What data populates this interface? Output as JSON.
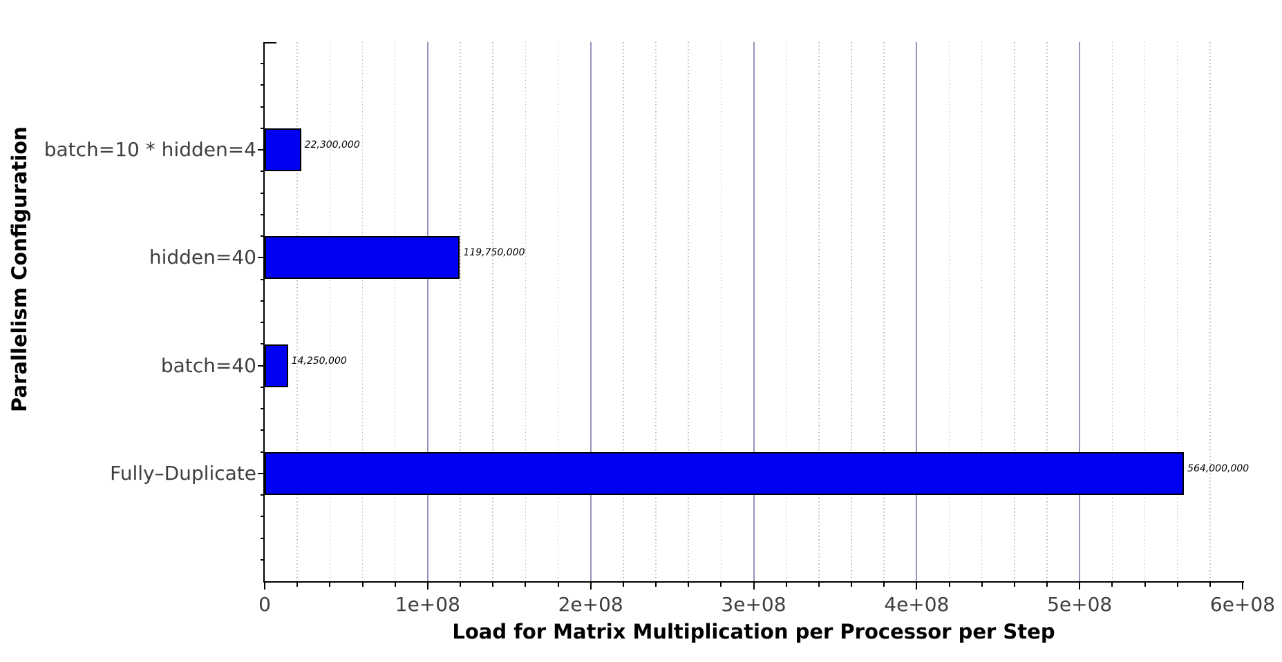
{
  "chart_data": {
    "type": "bar",
    "orientation": "horizontal",
    "categories": [
      "batch=10 * hidden=4",
      "hidden=40",
      "batch=40",
      "Fully–Duplicate"
    ],
    "values": [
      22300000,
      119750000,
      14250000,
      564000000
    ],
    "value_labels": [
      "22,300,000",
      "119,750,000",
      "14,250,000",
      "564,000,000"
    ],
    "xlabel": "Load for Matrix Multiplication per Processor per Step",
    "ylabel": "Parallelism Configuration",
    "xlim": [
      0,
      600000000
    ],
    "x_tick_labels": [
      "0",
      "1e+08",
      "2e+08",
      "3e+08",
      "4e+08",
      "5e+08",
      "6e+08"
    ],
    "x_major_step": 100000000,
    "x_minor_step": 20000000,
    "grid": "vertical-only: solid majors, dotted minors",
    "legend_position": "none",
    "colors": {
      "bar_fill": "#0000f2",
      "bar_border": "#000000",
      "major_grid": "#9595bd",
      "minor_grid": "#b8b8b8",
      "axis": "#000000",
      "tick_label": "#3f3f3f",
      "title_text": "#000000",
      "background": "#ffffff"
    }
  }
}
